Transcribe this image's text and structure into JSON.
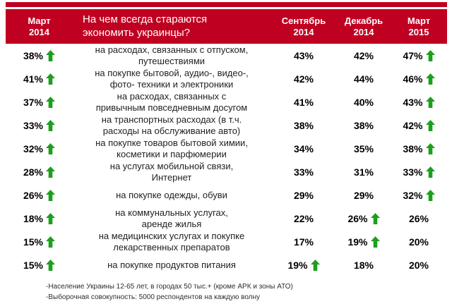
{
  "colors": {
    "header_background": "#C00021",
    "arrow_green": "#1E9E1E"
  },
  "header": {
    "question": "На чем всегда стараются\nэкономить украинцы?",
    "columns": [
      "Март\n2014",
      "Сентябрь\n2014",
      "Декабрь\n2014",
      "Март\n2015"
    ]
  },
  "chart_data": {
    "type": "table",
    "title": "На чем всегда стараются экономить украинцы?",
    "unit": "%",
    "categories": [
      "на расходах, связанных с отпуском,\nпутешествиями",
      "на покупке бытовой, аудио-, видео-,\nфото- техники и электроники",
      "на расходах, связанных с\nпривычным повседневным досугом",
      "на транспортных расходах (в т.ч.\nрасходы на обслуживание авто)",
      "на покупке товаров бытовой химии,\nкосметики и парфюмерии",
      "на услугах мобильной связи,\nИнтернет",
      "на покупке одежды, обуви",
      "на коммунальных услугах,\nаренде жилья",
      "на медицинских услугах и покупке\nлекарственных препаратов",
      "на покупке продуктов питания"
    ],
    "series": [
      {
        "name": "Март 2014",
        "values": [
          38,
          41,
          37,
          33,
          32,
          28,
          26,
          18,
          15,
          15
        ],
        "up_arrows": [
          true,
          true,
          true,
          true,
          true,
          true,
          true,
          true,
          true,
          true
        ]
      },
      {
        "name": "Сентябрь 2014",
        "values": [
          43,
          42,
          41,
          38,
          34,
          33,
          29,
          22,
          17,
          19
        ],
        "up_arrows": [
          false,
          false,
          false,
          false,
          false,
          false,
          false,
          false,
          false,
          true
        ]
      },
      {
        "name": "Декабрь 2014",
        "values": [
          42,
          44,
          40,
          38,
          35,
          31,
          29,
          26,
          19,
          18
        ],
        "up_arrows": [
          false,
          false,
          false,
          false,
          false,
          false,
          false,
          true,
          true,
          false
        ]
      },
      {
        "name": "Март 2015",
        "values": [
          47,
          46,
          43,
          42,
          38,
          33,
          32,
          26,
          20,
          20
        ],
        "up_arrows": [
          true,
          true,
          true,
          true,
          true,
          true,
          true,
          false,
          false,
          false
        ]
      }
    ]
  },
  "footnotes": [
    "-Население Украины 12-65 лет, в городах 50 тыс.+ (кроме АРК и зоны АТО)",
    "-Выборочная совокупность: 5000 респондентов на каждую волну"
  ]
}
